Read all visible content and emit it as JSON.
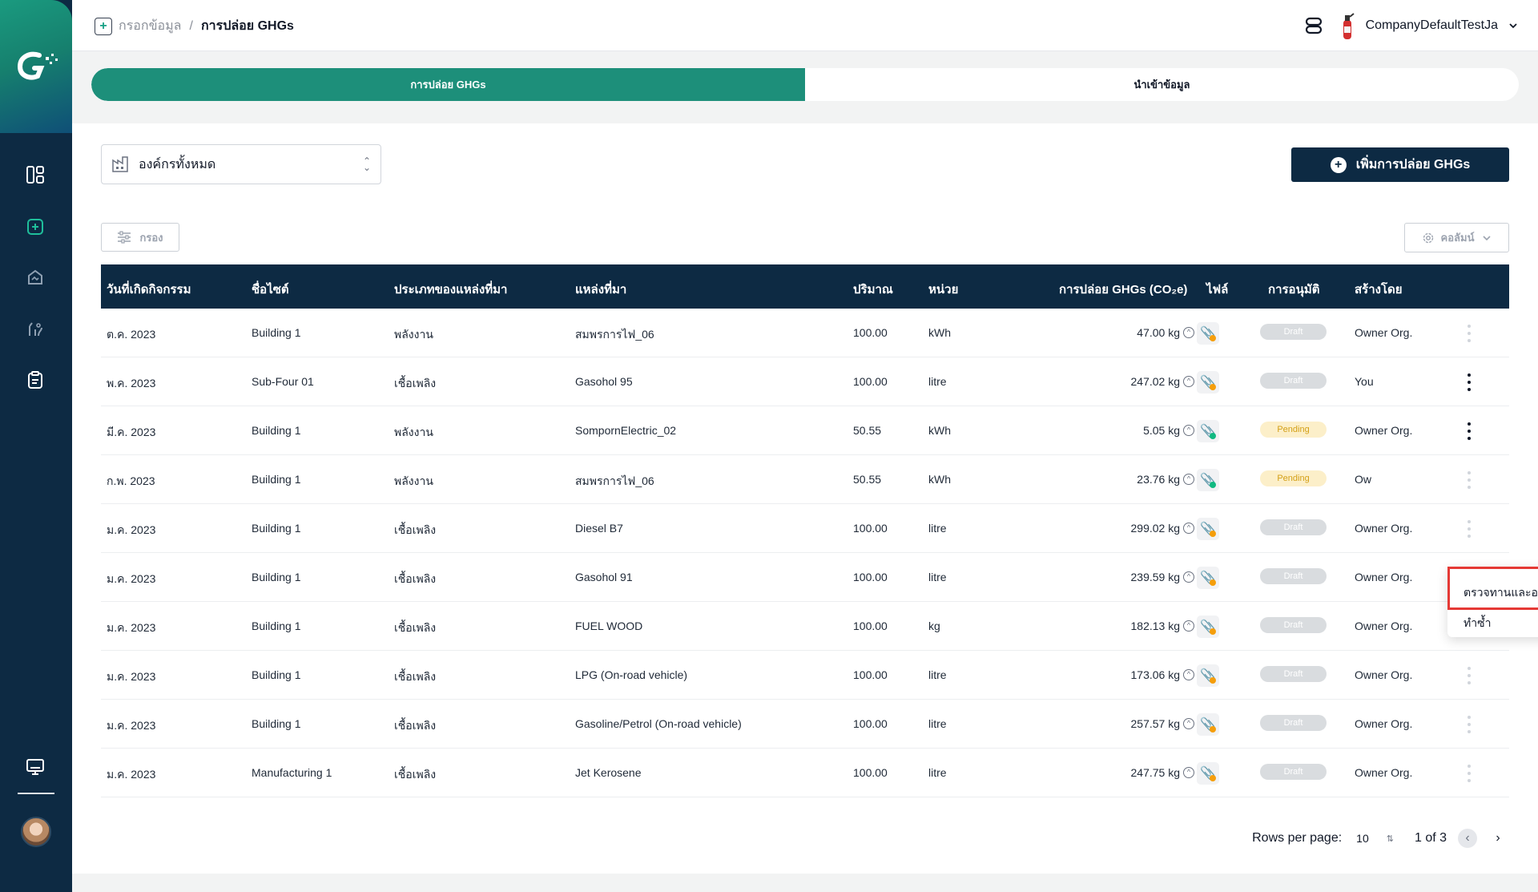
{
  "breadcrumb": {
    "parent": "กรอกข้อมูล",
    "separator": "/",
    "current": "การปล่อย GHGs"
  },
  "header": {
    "company": "CompanyDefaultTestJa"
  },
  "tabs": [
    {
      "label": "การปล่อย GHGs",
      "active": true
    },
    {
      "label": "นำเข้าข้อมูล",
      "active": false
    }
  ],
  "org_select": {
    "value": "องค์กรทั้งหมด"
  },
  "add_button": {
    "label": "เพิ่มการปล่อย GHGs"
  },
  "filter_button": {
    "label": "กรอง"
  },
  "column_button": {
    "label": "คอลัมน์"
  },
  "table": {
    "headers": {
      "date": "วันที่เกิดกิจกรรม",
      "site": "ชื่อไซต์",
      "source_type": "ประเภทของแหล่งที่มา",
      "source": "แหล่งที่มา",
      "amount": "ปริมาณ",
      "unit": "หน่วย",
      "emission": "การปล่อย GHGs (CO₂e)",
      "file": "ไฟล์",
      "approval": "การอนุมัติ",
      "created_by": "สร้างโดย"
    },
    "rows": [
      {
        "date": "ต.ค. 2023",
        "site": "Building 1",
        "source_type": "พลังงาน",
        "source": "สมพรการไฟ_06",
        "amount": "100.00",
        "unit": "kWh",
        "emission": "47.00 kg",
        "file_attached": false,
        "status": "Draft",
        "created_by": "Owner Org.",
        "menu_active": false
      },
      {
        "date": "พ.ค. 2023",
        "site": "Sub-Four 01",
        "source_type": "เชื้อเพลิง",
        "source": "Gasohol 95",
        "amount": "100.00",
        "unit": "litre",
        "emission": "247.02 kg",
        "file_attached": false,
        "status": "Draft",
        "created_by": "You",
        "menu_active": true
      },
      {
        "date": "มี.ค. 2023",
        "site": "Building 1",
        "source_type": "พลังงาน",
        "source": "SompornElectric_02",
        "amount": "50.55",
        "unit": "kWh",
        "emission": "5.05 kg",
        "file_attached": true,
        "status": "Pending",
        "created_by": "Owner Org.",
        "menu_active": true
      },
      {
        "date": "ก.พ. 2023",
        "site": "Building 1",
        "source_type": "พลังงาน",
        "source": "สมพรการไฟ_06",
        "amount": "50.55",
        "unit": "kWh",
        "emission": "23.76 kg",
        "file_attached": true,
        "status": "Pending",
        "created_by": "Ow",
        "menu_active": false
      },
      {
        "date": "ม.ค. 2023",
        "site": "Building 1",
        "source_type": "เชื้อเพลิง",
        "source": "Diesel B7",
        "amount": "100.00",
        "unit": "litre",
        "emission": "299.02 kg",
        "file_attached": false,
        "status": "Draft",
        "created_by": "Owner Org.",
        "menu_active": false
      },
      {
        "date": "ม.ค. 2023",
        "site": "Building 1",
        "source_type": "เชื้อเพลิง",
        "source": "Gasohol 91",
        "amount": "100.00",
        "unit": "litre",
        "emission": "239.59 kg",
        "file_attached": false,
        "status": "Draft",
        "created_by": "Owner Org.",
        "menu_active": false
      },
      {
        "date": "ม.ค. 2023",
        "site": "Building 1",
        "source_type": "เชื้อเพลิง",
        "source": "FUEL WOOD",
        "amount": "100.00",
        "unit": "kg",
        "emission": "182.13 kg",
        "file_attached": false,
        "status": "Draft",
        "created_by": "Owner Org.",
        "menu_active": false
      },
      {
        "date": "ม.ค. 2023",
        "site": "Building 1",
        "source_type": "เชื้อเพลิง",
        "source": "LPG (On-road vehicle)",
        "amount": "100.00",
        "unit": "litre",
        "emission": "173.06 kg",
        "file_attached": false,
        "status": "Draft",
        "created_by": "Owner Org.",
        "menu_active": false
      },
      {
        "date": "ม.ค. 2023",
        "site": "Building 1",
        "source_type": "เชื้อเพลิง",
        "source": "Gasoline/Petrol (On-road vehicle)",
        "amount": "100.00",
        "unit": "litre",
        "emission": "257.57 kg",
        "file_attached": false,
        "status": "Draft",
        "created_by": "Owner Org.",
        "menu_active": false
      },
      {
        "date": "ม.ค. 2023",
        "site": "Manufacturing 1",
        "source_type": "เชื้อเพลิง",
        "source": "Jet Kerosene",
        "amount": "100.00",
        "unit": "litre",
        "emission": "247.75 kg",
        "file_attached": false,
        "status": "Draft",
        "created_by": "Owner Org.",
        "menu_active": false
      }
    ]
  },
  "row_menu": {
    "items": [
      "ตรวจทานและอนุมัติ",
      "ทำซ้ำ"
    ]
  },
  "pagination": {
    "rows_per_page_label": "Rows per page:",
    "rows_per_page": "10",
    "range": "1 of 3"
  },
  "colors": {
    "navy": "#0d2a43",
    "teal": "#1d8f7a",
    "highlight": "#e53935",
    "pending": "#d4a017"
  },
  "icons": {
    "sidebar": [
      "dashboard-icon",
      "add-data-icon",
      "emission-icon",
      "reduction-icon",
      "report-icon",
      "monitor-icon"
    ]
  }
}
